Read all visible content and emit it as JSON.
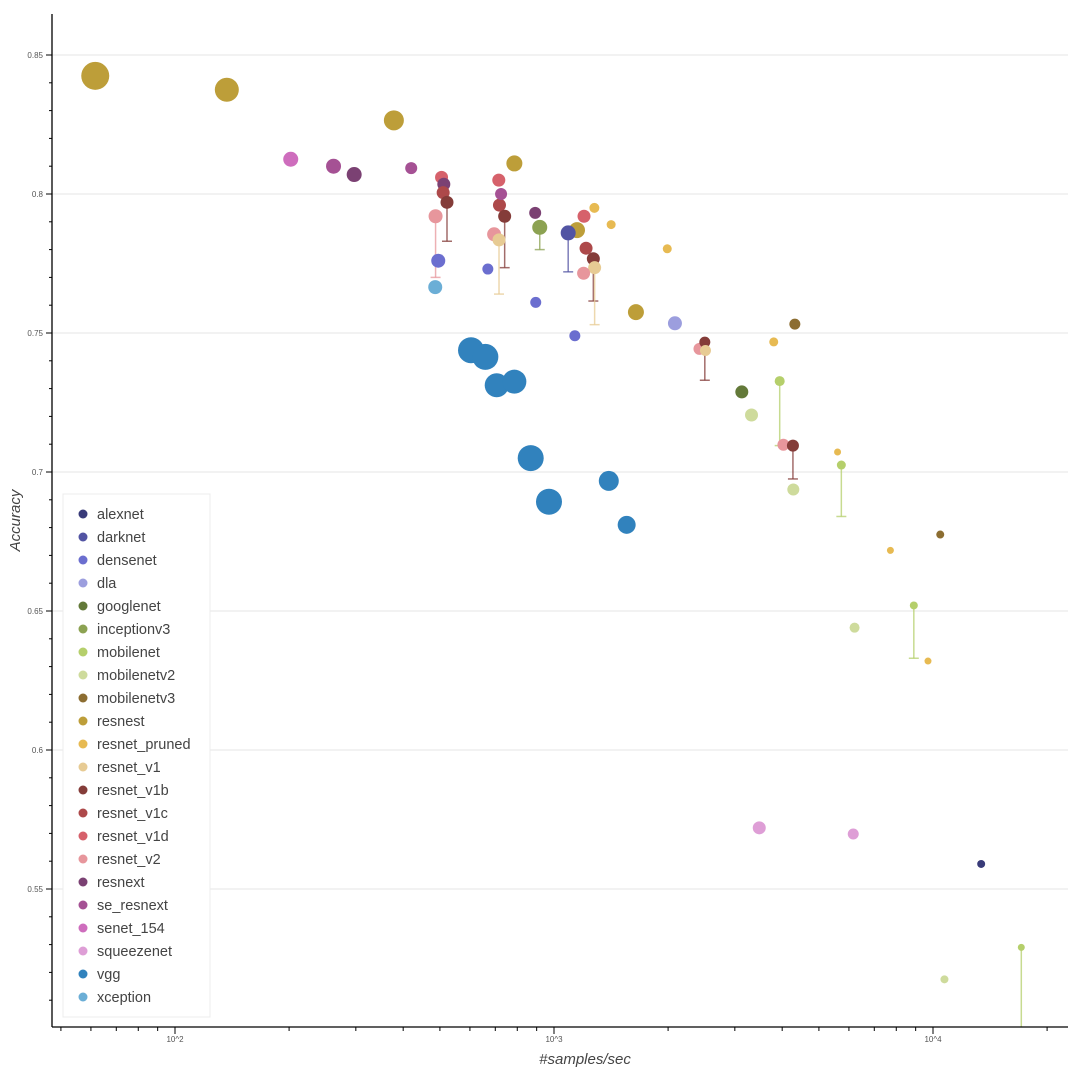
{
  "chart_data": {
    "type": "scatter",
    "title": "",
    "xlabel": "#samples/sec",
    "ylabel": "Accuracy",
    "xscale": "log",
    "xlim": [
      44,
      21500
    ],
    "ylim": [
      0.5035,
      0.8605
    ],
    "xticks": [
      100,
      1000,
      10000
    ],
    "xtick_labels": [
      "10^2",
      "10^3",
      "10^4"
    ],
    "yticks": [
      0.55,
      0.6,
      0.65,
      0.7,
      0.75,
      0.8,
      0.85
    ],
    "ytick_labels": [
      "0.55",
      "0.6",
      "0.65",
      "0.7",
      "0.75",
      "0.8",
      "0.85"
    ],
    "grid": true,
    "legend_position": "bottom-left",
    "legend": [
      {
        "name": "alexnet",
        "color": "#393b79"
      },
      {
        "name": "darknet",
        "color": "#5254a3"
      },
      {
        "name": "densenet",
        "color": "#6b6ecf"
      },
      {
        "name": "dla",
        "color": "#9c9ede"
      },
      {
        "name": "googlenet",
        "color": "#637939"
      },
      {
        "name": "inceptionv3",
        "color": "#8ca252"
      },
      {
        "name": "mobilenet",
        "color": "#b5cf6b"
      },
      {
        "name": "mobilenetv2",
        "color": "#cedb9c"
      },
      {
        "name": "mobilenetv3",
        "color": "#8c6d31"
      },
      {
        "name": "resnest",
        "color": "#bd9e39"
      },
      {
        "name": "resnet_pruned",
        "color": "#e7ba52"
      },
      {
        "name": "resnet_v1",
        "color": "#e7cb94"
      },
      {
        "name": "resnet_v1b",
        "color": "#843c39"
      },
      {
        "name": "resnet_v1c",
        "color": "#ad494a"
      },
      {
        "name": "resnet_v1d",
        "color": "#d6616b"
      },
      {
        "name": "resnet_v2",
        "color": "#e7969c"
      },
      {
        "name": "resnext",
        "color": "#7b4173"
      },
      {
        "name": "se_resnext",
        "color": "#a55194"
      },
      {
        "name": "senet_154",
        "color": "#ce6dbd"
      },
      {
        "name": "squeezenet",
        "color": "#de9ed6"
      },
      {
        "name": "vgg",
        "color": "#3182bd"
      },
      {
        "name": "xception",
        "color": "#6baed6"
      }
    ],
    "size_meaning": "marker size varies by model",
    "points": [
      {
        "family": "resnest",
        "x": 61.6,
        "y": 0.8425,
        "size": 14
      },
      {
        "family": "resnest",
        "x": 137,
        "y": 0.8375,
        "size": 12
      },
      {
        "family": "resnest",
        "x": 378,
        "y": 0.8265,
        "size": 10
      },
      {
        "family": "resnest",
        "x": 786,
        "y": 0.811,
        "size": 8
      },
      {
        "family": "resnest",
        "x": 1150,
        "y": 0.787,
        "size": 8
      },
      {
        "family": "resnest",
        "x": 1645,
        "y": 0.7575,
        "size": 8
      },
      {
        "family": "senet_154",
        "x": 202,
        "y": 0.8125,
        "size": 7.5
      },
      {
        "family": "se_resnext",
        "x": 262,
        "y": 0.81,
        "size": 7.5
      },
      {
        "family": "resnext",
        "x": 297,
        "y": 0.807,
        "size": 7.5
      },
      {
        "family": "se_resnext",
        "x": 420,
        "y": 0.8093,
        "size": 6
      },
      {
        "family": "resnet_v1d",
        "x": 505,
        "y": 0.806,
        "size": 6.5
      },
      {
        "family": "resnext",
        "x": 512,
        "y": 0.8035,
        "size": 6.5
      },
      {
        "family": "resnet_v1c",
        "x": 510,
        "y": 0.8005,
        "size": 6.5
      },
      {
        "family": "resnet_v1b",
        "x": 522,
        "y": 0.797,
        "size": 6.5,
        "err_low": 0.783
      },
      {
        "family": "resnet_v2",
        "x": 487,
        "y": 0.792,
        "size": 7,
        "err_low": 0.77
      },
      {
        "family": "densenet",
        "x": 495,
        "y": 0.776,
        "size": 7
      },
      {
        "family": "xception",
        "x": 486,
        "y": 0.7665,
        "size": 7
      },
      {
        "family": "resnet_v1d",
        "x": 715,
        "y": 0.805,
        "size": 6.5
      },
      {
        "family": "se_resnext",
        "x": 725,
        "y": 0.8,
        "size": 6
      },
      {
        "family": "resnet_v1c",
        "x": 718,
        "y": 0.796,
        "size": 6.5
      },
      {
        "family": "resnet_v1b",
        "x": 741,
        "y": 0.792,
        "size": 6.5,
        "err_low": 0.7735
      },
      {
        "family": "resnet_v2",
        "x": 695,
        "y": 0.7855,
        "size": 7
      },
      {
        "family": "resnet_v1",
        "x": 716,
        "y": 0.7835,
        "size": 6.5,
        "err_low": 0.764
      },
      {
        "family": "densenet",
        "x": 669,
        "y": 0.773,
        "size": 5.5
      },
      {
        "family": "resnext",
        "x": 892,
        "y": 0.7932,
        "size": 6
      },
      {
        "family": "inceptionv3",
        "x": 917,
        "y": 0.788,
        "size": 7.5,
        "err_low": 0.78
      },
      {
        "family": "densenet",
        "x": 895,
        "y": 0.761,
        "size": 5.5
      },
      {
        "family": "darknet",
        "x": 1090,
        "y": 0.786,
        "size": 7.5,
        "err_low": 0.772
      },
      {
        "family": "resnet_pruned",
        "x": 1278,
        "y": 0.795,
        "size": 5
      },
      {
        "family": "resnet_v1d",
        "x": 1200,
        "y": 0.792,
        "size": 6.5
      },
      {
        "family": "resnet_pruned",
        "x": 1415,
        "y": 0.789,
        "size": 4.5
      },
      {
        "family": "resnet_v1c",
        "x": 1215,
        "y": 0.7805,
        "size": 6.5
      },
      {
        "family": "resnet_v1b",
        "x": 1270,
        "y": 0.7767,
        "size": 6.5,
        "err_low": 0.7615
      },
      {
        "family": "resnet_v1",
        "x": 1280,
        "y": 0.7735,
        "size": 6.5,
        "err_low": 0.753
      },
      {
        "family": "resnet_v2",
        "x": 1197,
        "y": 0.7715,
        "size": 6.5
      },
      {
        "family": "densenet",
        "x": 1135,
        "y": 0.749,
        "size": 5.5
      },
      {
        "family": "resnet_pruned",
        "x": 1990,
        "y": 0.7803,
        "size": 4.5
      },
      {
        "family": "dla",
        "x": 2085,
        "y": 0.7535,
        "size": 7
      },
      {
        "family": "resnet_v1b",
        "x": 2500,
        "y": 0.7467,
        "size": 5.5,
        "err_low": 0.733
      },
      {
        "family": "resnet_v2",
        "x": 2420,
        "y": 0.7443,
        "size": 6
      },
      {
        "family": "resnet_v1",
        "x": 2510,
        "y": 0.7437,
        "size": 5.5
      },
      {
        "family": "googlenet",
        "x": 3130,
        "y": 0.7288,
        "size": 6.5
      },
      {
        "family": "mobilenetv2",
        "x": 3320,
        "y": 0.7205,
        "size": 6.5
      },
      {
        "family": "resnet_pruned",
        "x": 3800,
        "y": 0.7468,
        "size": 4.5
      },
      {
        "family": "mobilenetv3",
        "x": 4320,
        "y": 0.7532,
        "size": 5.5
      },
      {
        "family": "mobilenet",
        "x": 3940,
        "y": 0.7327,
        "size": 5,
        "err_low": 0.7095
      },
      {
        "family": "resnet_v2",
        "x": 4030,
        "y": 0.7098,
        "size": 6
      },
      {
        "family": "resnet_v1b",
        "x": 4270,
        "y": 0.7095,
        "size": 6,
        "err_low": 0.6975
      },
      {
        "family": "mobilenetv2",
        "x": 4280,
        "y": 0.6937,
        "size": 6
      },
      {
        "family": "resnet_pruned",
        "x": 5600,
        "y": 0.7072,
        "size": 3.5
      },
      {
        "family": "mobilenet",
        "x": 5730,
        "y": 0.7025,
        "size": 4.5,
        "err_low": 0.684
      },
      {
        "family": "resnet_pruned",
        "x": 7720,
        "y": 0.6718,
        "size": 3.5
      },
      {
        "family": "mobilenetv3",
        "x": 10450,
        "y": 0.6775,
        "size": 4
      },
      {
        "family": "mobilenet",
        "x": 8900,
        "y": 0.652,
        "size": 4,
        "err_low": 0.633
      },
      {
        "family": "mobilenetv2",
        "x": 6210,
        "y": 0.644,
        "size": 5
      },
      {
        "family": "resnet_pruned",
        "x": 9700,
        "y": 0.632,
        "size": 3.5
      },
      {
        "family": "squeezenet",
        "x": 3480,
        "y": 0.572,
        "size": 6.5
      },
      {
        "family": "squeezenet",
        "x": 6160,
        "y": 0.5698,
        "size": 5.5
      },
      {
        "family": "alexnet",
        "x": 13400,
        "y": 0.559,
        "size": 4
      },
      {
        "family": "mobilenetv2",
        "x": 10720,
        "y": 0.5175,
        "size": 4
      },
      {
        "family": "mobilenet",
        "x": 17100,
        "y": 0.529,
        "size": 3.5,
        "err_low": 0.49
      },
      {
        "family": "vgg",
        "x": 604,
        "y": 0.7438,
        "size": 13
      },
      {
        "family": "vgg",
        "x": 659,
        "y": 0.7414,
        "size": 13
      },
      {
        "family": "vgg",
        "x": 706,
        "y": 0.7312,
        "size": 12
      },
      {
        "family": "vgg",
        "x": 786,
        "y": 0.7325,
        "size": 12
      },
      {
        "family": "vgg",
        "x": 868,
        "y": 0.705,
        "size": 13
      },
      {
        "family": "vgg",
        "x": 970,
        "y": 0.6893,
        "size": 13
      },
      {
        "family": "vgg",
        "x": 1395,
        "y": 0.6968,
        "size": 10
      },
      {
        "family": "vgg",
        "x": 1555,
        "y": 0.681,
        "size": 9
      }
    ]
  }
}
